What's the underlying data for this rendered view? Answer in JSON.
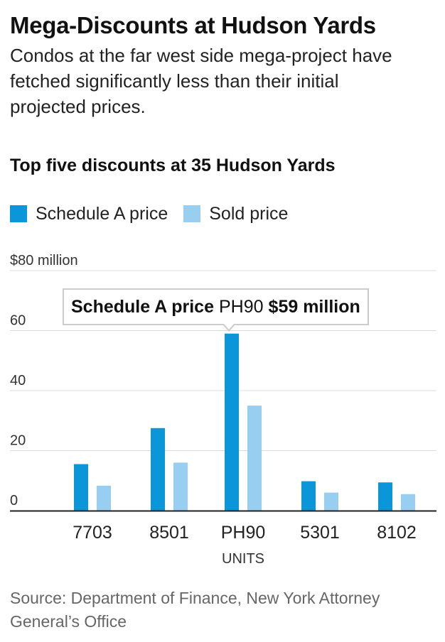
{
  "header": {
    "title": "Mega-Discounts at Hudson Yards",
    "subtitle": "Condos at the far west side mega-project have fetched significantly less than their initial projected prices.",
    "chart_title": "Top five discounts at 35 Hudson Yards"
  },
  "legend": [
    {
      "label": "Schedule A price",
      "color": "#0a96d8"
    },
    {
      "label": "Sold price",
      "color": "#98ceef"
    }
  ],
  "tooltip": {
    "series": "Schedule A price",
    "category": "PH90",
    "value": "$59 million"
  },
  "source": "Source: Department of Finance, New York Attorney General’s Office",
  "chart_data": {
    "type": "bar",
    "title": "Top five discounts at 35 Hudson Yards",
    "xlabel": "UNITS",
    "ylabel": "",
    "ylim": [
      0,
      80
    ],
    "yticks": [
      0,
      20,
      40,
      60,
      80
    ],
    "ytick_labels": [
      "0",
      "20",
      "40",
      "60",
      "$80 million"
    ],
    "categories": [
      "7703",
      "8501",
      "PH90",
      "5301",
      "8102"
    ],
    "series": [
      {
        "name": "Schedule A price",
        "color": "#0a96d8",
        "values": [
          15.5,
          27.5,
          59,
          9.8,
          9.4
        ]
      },
      {
        "name": "Sold price",
        "color": "#98ceef",
        "values": [
          8.3,
          16,
          35,
          6,
          5.5
        ]
      }
    ],
    "grid": true,
    "legend_position": "top-left"
  }
}
